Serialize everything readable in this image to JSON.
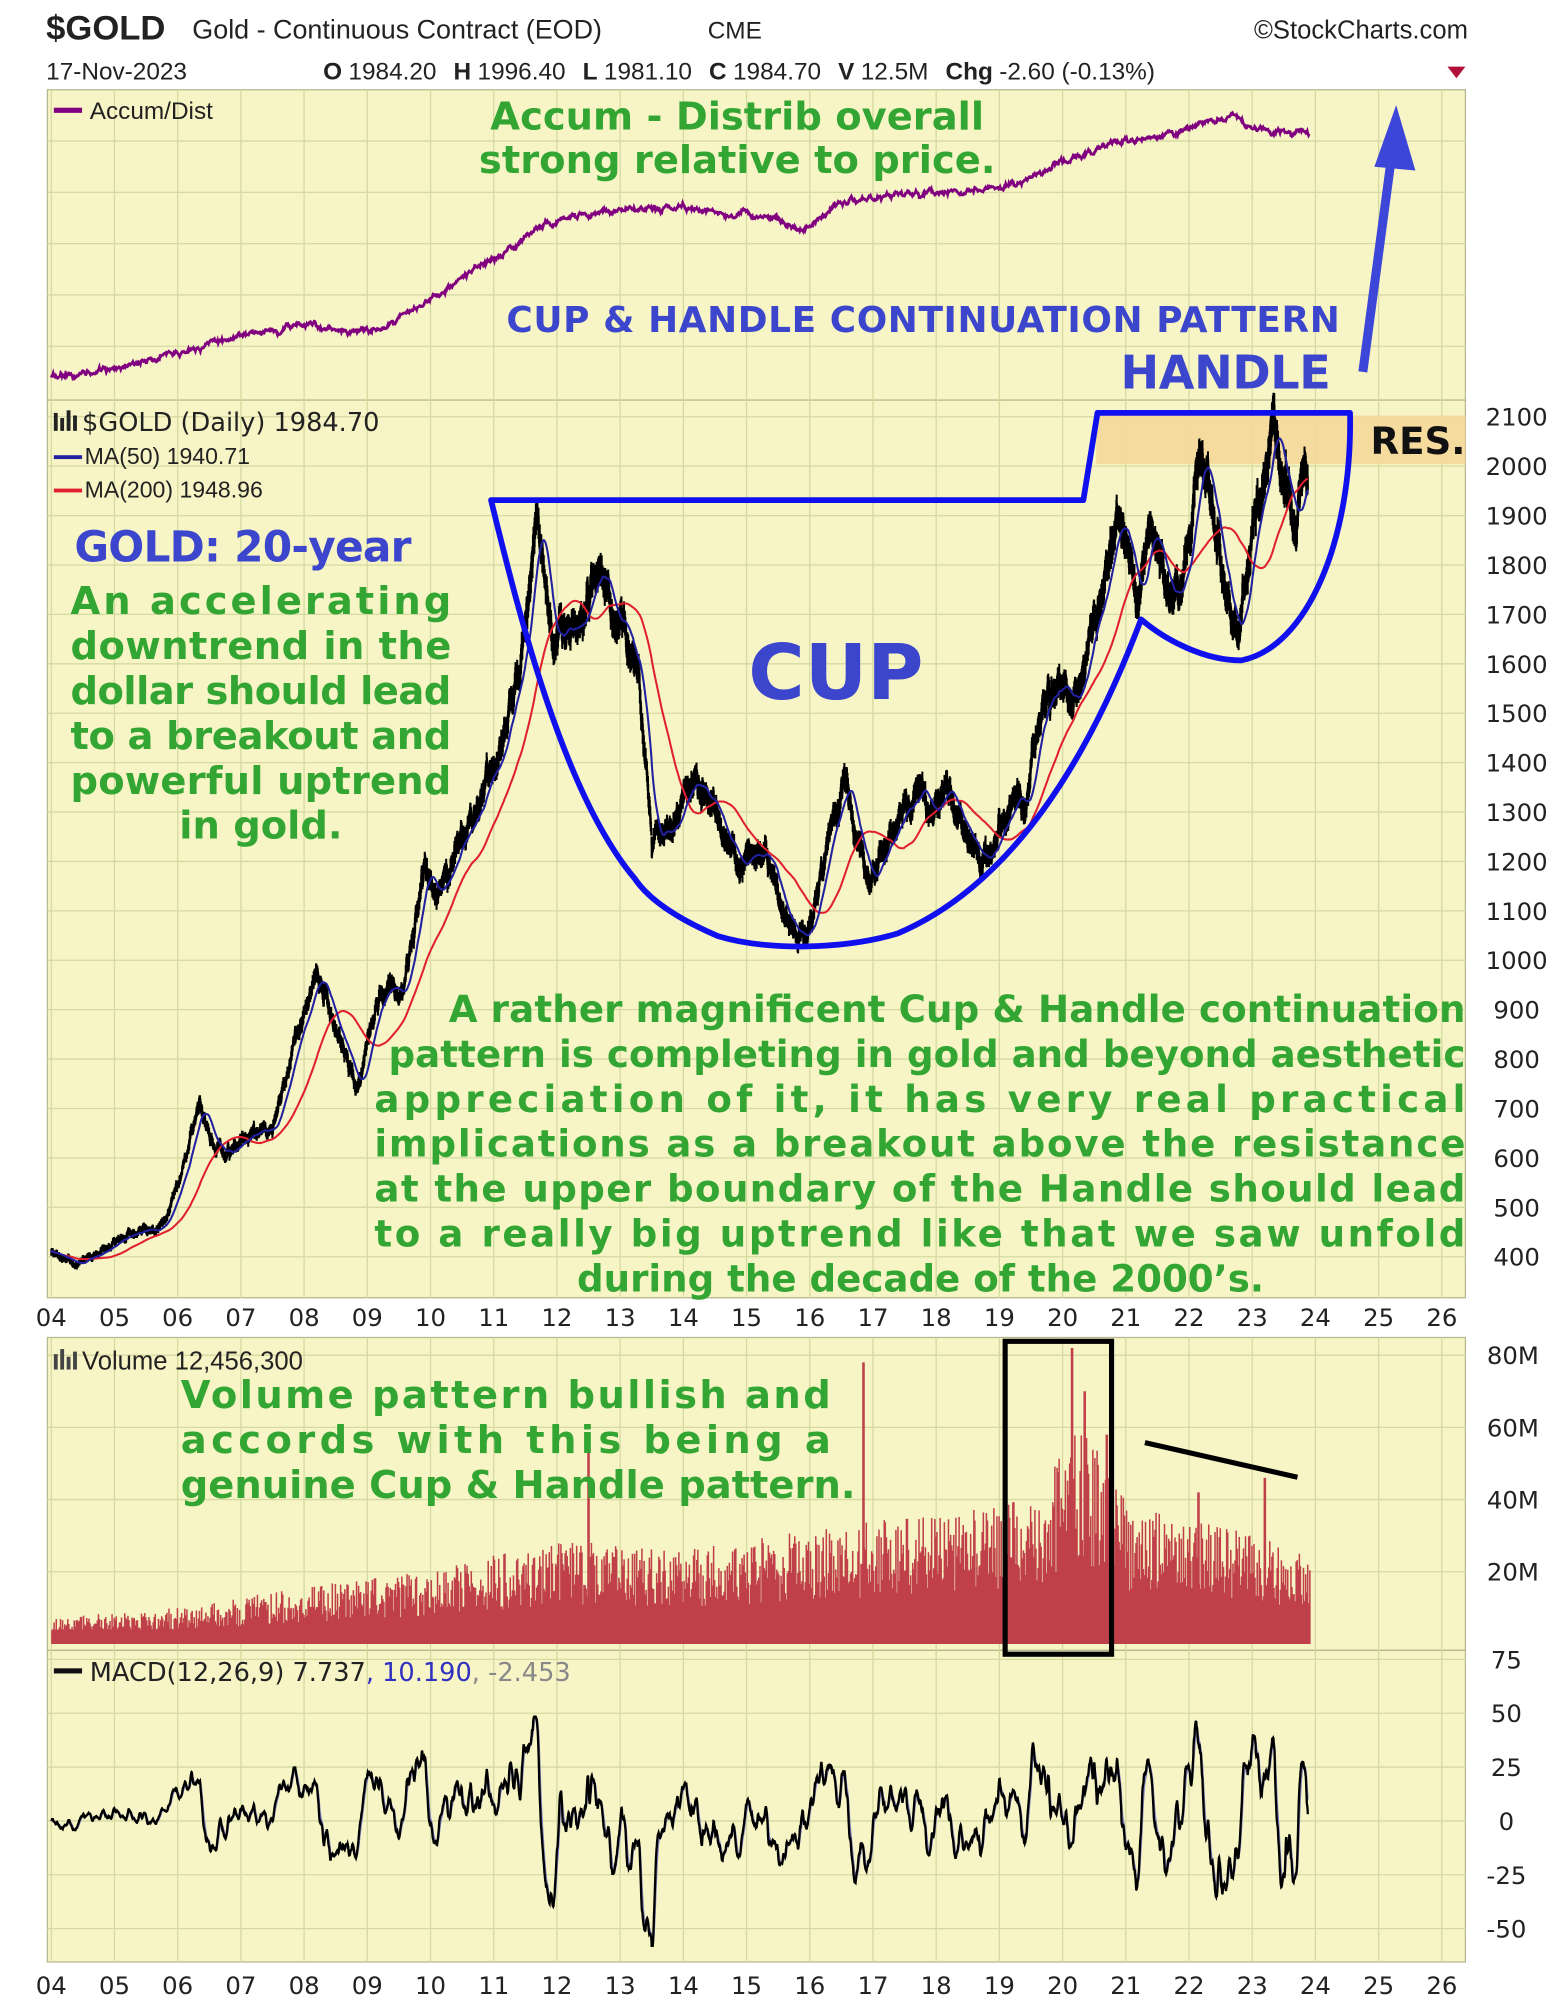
{
  "header": {
    "symbol": "$GOLD",
    "name": "Gold - Continuous Contract (EOD)",
    "exchange": "CME",
    "brand": "©StockCharts.com",
    "date": "17-Nov-2023",
    "open_label": "O",
    "open": "1984.20",
    "high_label": "H",
    "high": "1996.40",
    "low_label": "L",
    "low": "1981.10",
    "close_label": "C",
    "close": "1984.70",
    "volume_label": "V",
    "volume": "12.5M",
    "chg_label": "Chg",
    "chg": "-2.60 (-0.13%)",
    "chg_icon": "down-triangle-icon"
  },
  "colors": {
    "panel_bg": "#f7f5c6",
    "price": "#000000",
    "ma50": "#2020a0",
    "ma200": "#e02030",
    "accum_dist": "#800080",
    "volume": "#c0404a",
    "macd": "#000000",
    "signal": "#8080c0",
    "annotation_blue": "#1010ee",
    "annotation_green": "#33a533",
    "resistance": "#f5d89a"
  },
  "legends": {
    "ad": "Accum/Dist",
    "price": "$GOLD (Daily) 1984.70",
    "ma50": "MA(50) 1940.71",
    "ma200": "MA(200) 1948.96",
    "volume": "Volume 12,456,300",
    "macd_main": "MACD(12,26,9) 7.737",
    "macd_signal": ", 10.190",
    "macd_hist": ", -2.453"
  },
  "annotations": {
    "ad_note": [
      "Accum - Distrib overall",
      "strong relative to price."
    ],
    "pattern_title": "CUP & HANDLE CONTINUATION PATTERN",
    "handle": "HANDLE",
    "res": "RES.",
    "cup": "CUP",
    "gold_title": "GOLD: 20-year",
    "gold_note": [
      "An accelerating",
      "downtrend in the",
      "dollar should lead",
      "to a breakout and",
      "powerful uptrend",
      "in gold."
    ],
    "main_note": [
      "A rather magnificent Cup & Handle continuation",
      "pattern is completing in gold and beyond aesthetic",
      "appreciation of it, it has very real practical",
      "implications as a breakout above the resistance",
      "at the upper boundary of the Handle should lead",
      "to a really big uptrend like that we saw unfold",
      "during the decade of the 2000’s."
    ],
    "volume_note": [
      "Volume pattern bullish and",
      "accords with this being a",
      "genuine Cup & Handle pattern."
    ]
  },
  "chart_data": [
    {
      "type": "line",
      "panel": "accum_dist",
      "series": [
        {
          "name": "Accum/Dist",
          "x": [
            2004,
            2005,
            2006,
            2007,
            2008,
            2008.8,
            2009.3,
            2010,
            2011,
            2011.8,
            2012.5,
            2013.5,
            2014.5,
            2015.5,
            2015.9,
            2016.5,
            2017,
            2018,
            2019,
            2019.7,
            2020.5,
            2021,
            2021.6,
            2022.2,
            2022.7,
            2023,
            2023.9
          ],
          "y": [
            0,
            3,
            10,
            16,
            20,
            17,
            19,
            30,
            45,
            58,
            62,
            64,
            63,
            60,
            56,
            66,
            68,
            70,
            72,
            78,
            86,
            90,
            92,
            96,
            100,
            94,
            92
          ]
        }
      ],
      "ylabel": "",
      "grid": true,
      "legend": "top-left"
    },
    {
      "type": "line",
      "panel": "price",
      "ylim": [
        350,
        2150
      ],
      "yticks": [
        400,
        500,
        600,
        700,
        800,
        900,
        1000,
        1100,
        1200,
        1300,
        1400,
        1500,
        1600,
        1700,
        1800,
        1900,
        2000,
        2100
      ],
      "xticks": [
        "04",
        "05",
        "06",
        "07",
        "08",
        "09",
        "10",
        "11",
        "12",
        "13",
        "14",
        "15",
        "16",
        "17",
        "18",
        "19",
        "20",
        "21",
        "22",
        "23",
        "24",
        "25",
        "26"
      ],
      "xlim": [
        2004,
        2026
      ],
      "series": [
        {
          "name": "$GOLD (Daily)",
          "x": [
            2004.0,
            2004.4,
            2005.0,
            2005.7,
            2006.0,
            2006.35,
            2006.6,
            2007.0,
            2007.5,
            2008.0,
            2008.2,
            2008.5,
            2008.85,
            2009.2,
            2009.6,
            2009.9,
            2010.1,
            2010.5,
            2011.0,
            2011.4,
            2011.68,
            2011.95,
            2012.3,
            2012.7,
            2013.0,
            2013.3,
            2013.5,
            2013.8,
            2014.2,
            2014.5,
            2014.9,
            2015.3,
            2015.6,
            2015.95,
            2016.3,
            2016.55,
            2016.95,
            2017.3,
            2017.7,
            2017.95,
            2018.2,
            2018.7,
            2019.0,
            2019.4,
            2019.7,
            2020.0,
            2020.2,
            2020.6,
            2020.9,
            2021.2,
            2021.4,
            2021.7,
            2022.0,
            2022.2,
            2022.5,
            2022.8,
            2023.1,
            2023.35,
            2023.45,
            2023.7,
            2023.8,
            2023.88
          ],
          "y": [
            410,
            390,
            430,
            460,
            540,
            700,
            600,
            640,
            670,
            900,
            990,
            880,
            730,
            930,
            960,
            1200,
            1100,
            1250,
            1400,
            1520,
            1900,
            1620,
            1680,
            1780,
            1670,
            1580,
            1250,
            1300,
            1380,
            1320,
            1180,
            1200,
            1100,
            1050,
            1250,
            1360,
            1140,
            1250,
            1340,
            1280,
            1350,
            1180,
            1290,
            1300,
            1520,
            1560,
            1480,
            1800,
            1900,
            1720,
            1900,
            1760,
            1800,
            2050,
            1800,
            1640,
            1930,
            2050,
            1960,
            1860,
            2000,
            1985
          ]
        },
        {
          "name": "MA(50)",
          "last": 1940.71
        },
        {
          "name": "MA(200)",
          "last": 1948.96
        }
      ],
      "resistance_band": [
        2000,
        2100
      ],
      "grid": true,
      "legend": "top-left"
    },
    {
      "type": "bar",
      "panel": "volume",
      "ylim": [
        0,
        85
      ],
      "yticks": [
        "20M",
        "40M",
        "60M",
        "80M"
      ],
      "series": [
        {
          "name": "Volume",
          "x": [
            2004,
            2006,
            2008,
            2010,
            2012,
            2014,
            2016,
            2018,
            2019.5,
            2020.3,
            2021,
            2022,
            2023.9
          ],
          "y": [
            5,
            7,
            11,
            14,
            20,
            18,
            22,
            25,
            28,
            42,
            27,
            24,
            18
          ]
        }
      ],
      "spikes": [
        {
          "x": 2016.85,
          "y": 78
        },
        {
          "x": 2012.5,
          "y": 55
        },
        {
          "x": 2020.15,
          "y": 82
        },
        {
          "x": 2020.35,
          "y": 70
        },
        {
          "x": 2020.7,
          "y": 58
        },
        {
          "x": 2022.15,
          "y": 42
        },
        {
          "x": 2023.2,
          "y": 46
        }
      ],
      "grid": true,
      "legend": "top-left"
    },
    {
      "type": "line",
      "panel": "macd",
      "ylim": [
        -60,
        80
      ],
      "yticks": [
        -50,
        -25,
        0,
        25,
        50,
        75
      ],
      "series": [
        {
          "name": "MACD(12,26,9)",
          "last": 7.737
        },
        {
          "name": "Signal",
          "last": 10.19
        },
        {
          "name": "Histogram",
          "last": -2.453
        }
      ],
      "grid": true,
      "legend": "top-left"
    }
  ]
}
